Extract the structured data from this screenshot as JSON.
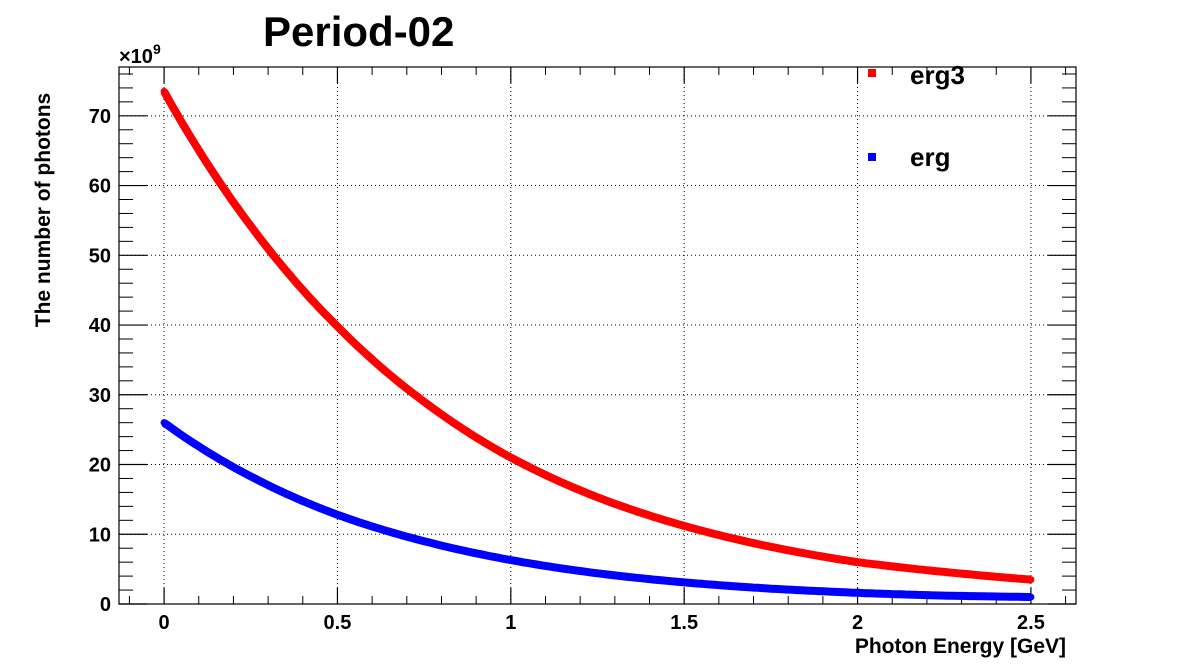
{
  "chart_data": {
    "type": "scatter",
    "title": "Period-02",
    "xlabel": "Photon Energy [GeV]",
    "ylabel": "The number of photons",
    "y_multiplier_label": "×10",
    "y_multiplier_exponent": "9",
    "xlim": [
      -0.13,
      2.63
    ],
    "ylim": [
      0,
      77
    ],
    "x_ticks": [
      "0",
      "0.5",
      "1",
      "1.5",
      "2",
      "2.5"
    ],
    "y_ticks": [
      "0",
      "10",
      "20",
      "30",
      "40",
      "50",
      "60",
      "70"
    ],
    "grid": true,
    "legend_position": "top-right",
    "series": [
      {
        "name": "erg3",
        "color": "#ff0000",
        "x": [
          0,
          0.25,
          0.5,
          0.75,
          1.0,
          1.25,
          1.5,
          1.75,
          2.0,
          2.25,
          2.5
        ],
        "y": [
          73.5,
          54.2,
          39.8,
          29.0,
          21.0,
          15.3,
          11.2,
          8.2,
          6.0,
          4.6,
          3.5
        ]
      },
      {
        "name": "erg",
        "color": "#0000ff",
        "x": [
          0,
          0.25,
          0.5,
          0.75,
          1.0,
          1.25,
          1.5,
          1.75,
          2.0,
          2.25,
          2.5
        ],
        "y": [
          26.0,
          18.3,
          12.8,
          9.0,
          6.3,
          4.4,
          3.1,
          2.2,
          1.6,
          1.2,
          1.0
        ]
      }
    ]
  }
}
